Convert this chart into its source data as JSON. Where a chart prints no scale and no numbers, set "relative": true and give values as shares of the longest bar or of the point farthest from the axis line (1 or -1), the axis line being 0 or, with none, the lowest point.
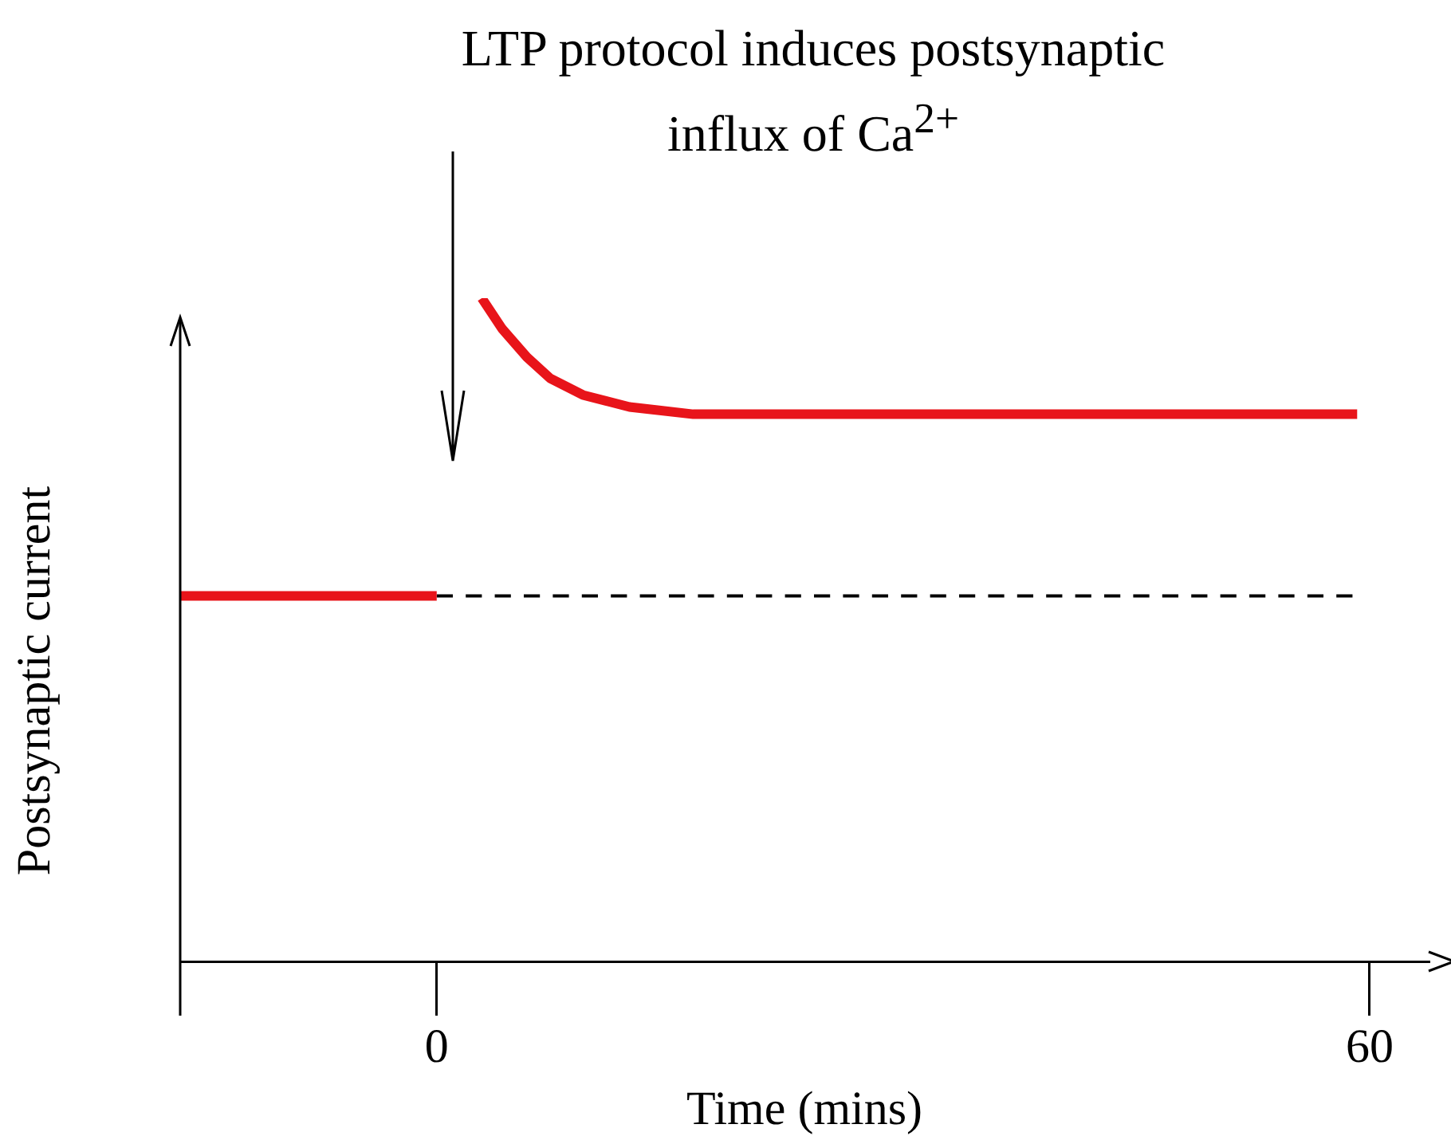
{
  "chart_data": {
    "type": "line",
    "title": "LTP protocol induces postsynaptic influx of Ca$^{2+}$",
    "xlabel": "Time (mins)",
    "ylabel": "Postsynaptic current",
    "relative": true,
    "xlim": [
      -16.5,
      63.8
    ],
    "xticks": [
      0,
      60
    ],
    "grid": false,
    "legend": false,
    "tick_labels": "x",
    "marker": "none",
    "series": [
      {
        "color": "#e8141a",
        "x": [
          -16.5,
          0
        ],
        "values": [
          0.551,
          0.551
        ]
      },
      {
        "color": "#e8141a",
        "x": [
          2.9,
          4.2,
          5.8,
          7.3,
          9.4,
          12.4,
          16.5,
          59.2
        ],
        "values": [
          1,
          0.954,
          0.911,
          0.879,
          0.854,
          0.836,
          0.825,
          0.825
        ]
      },
      {
        "color": "#000000",
        "line_style": "dashed",
        "x": [
          0,
          58.9
        ],
        "values": [
          0.551,
          0.551
        ]
      }
    ]
  }
}
